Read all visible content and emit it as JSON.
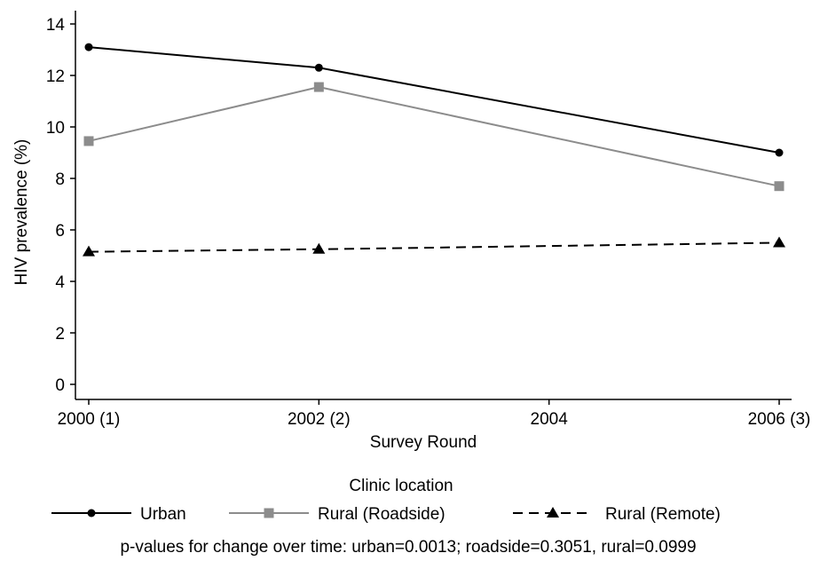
{
  "chart_data": {
    "type": "line",
    "x": [
      2000,
      2002,
      2006
    ],
    "x_ticks": [
      {
        "value": 2000,
        "label": "2000 (1)"
      },
      {
        "value": 2002,
        "label": "2002 (2)"
      },
      {
        "value": 2004,
        "label": "2004"
      },
      {
        "value": 2006,
        "label": "2006 (3)"
      }
    ],
    "y_ticks": [
      0,
      2,
      4,
      6,
      8,
      10,
      12,
      14
    ],
    "xlim": [
      2000,
      2006
    ],
    "ylim": [
      0,
      14
    ],
    "xlabel": "Survey Round",
    "ylabel": "HIV prevalence (%)",
    "grid": false,
    "legend_title": "Clinic location",
    "legend_position": "bottom",
    "series": [
      {
        "name": "Urban",
        "values": [
          13.1,
          12.3,
          9.0
        ],
        "color": "#000000",
        "marker": "circle",
        "dash": "solid"
      },
      {
        "name": "Rural (Roadside)",
        "values": [
          9.45,
          11.55,
          7.7
        ],
        "color": "#8c8c8c",
        "marker": "square",
        "dash": "solid"
      },
      {
        "name": "Rural (Remote)",
        "values": [
          5.15,
          5.25,
          5.5
        ],
        "color": "#000000",
        "marker": "triangle",
        "dash": "dashed"
      }
    ],
    "note": "p-values for change over time: urban=0.0013; roadside=0.3051, rural=0.0999"
  }
}
